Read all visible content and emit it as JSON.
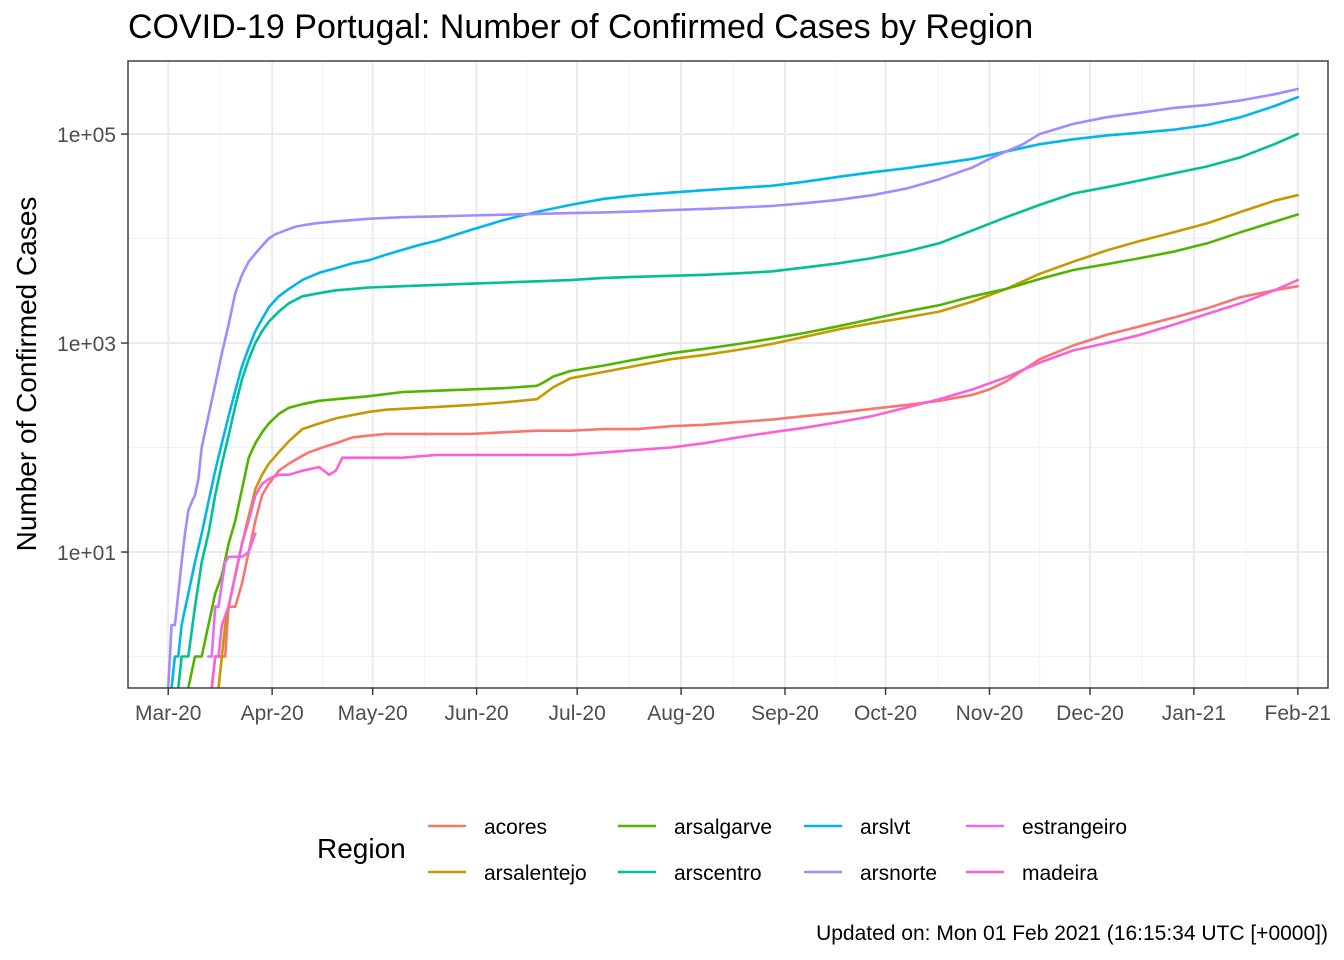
{
  "chart_data": {
    "type": "line",
    "title": "COVID-19 Portugal: Number of Confirmed Cases by Region",
    "xlabel": "",
    "ylabel": "Number of Confirmed Cases",
    "y_scale": "log10",
    "ylim": [
      0.5,
      500000
    ],
    "xlim": [
      -12,
      346
    ],
    "x_unit": "days since 2020-03-01",
    "x_ticks": [
      {
        "label": "Mar-20",
        "day": 0
      },
      {
        "label": "Apr-20",
        "day": 31
      },
      {
        "label": "May-20",
        "day": 61
      },
      {
        "label": "Jun-20",
        "day": 92
      },
      {
        "label": "Jul-20",
        "day": 122
      },
      {
        "label": "Aug-20",
        "day": 153
      },
      {
        "label": "Sep-20",
        "day": 184
      },
      {
        "label": "Oct-20",
        "day": 214
      },
      {
        "label": "Nov-20",
        "day": 245
      },
      {
        "label": "Dec-20",
        "day": 275
      },
      {
        "label": "Jan-21",
        "day": 306
      },
      {
        "label": "Feb-21",
        "day": 337
      }
    ],
    "y_ticks": [
      {
        "label": "1e+01",
        "value": 10
      },
      {
        "label": "1e+03",
        "value": 1000
      },
      {
        "label": "1e+05",
        "value": 100000
      }
    ],
    "legend": {
      "title": "Region",
      "position": "bottom"
    },
    "series": [
      {
        "name": "acores",
        "color": "#F8766D",
        "x": [
          13,
          14,
          15,
          16,
          17,
          18,
          20,
          22,
          24,
          26,
          28,
          30,
          33,
          36,
          39,
          42,
          46,
          50,
          55,
          60,
          65,
          70,
          75,
          80,
          90,
          100,
          110,
          120,
          130,
          140,
          150,
          160,
          170,
          180,
          190,
          200,
          210,
          220,
          230,
          240,
          245,
          250,
          255,
          260,
          270,
          280,
          290,
          300,
          310,
          320,
          330,
          337
        ],
        "y": [
          0.5,
          1,
          1,
          1,
          1,
          3,
          3,
          5,
          10,
          20,
          35,
          45,
          60,
          70,
          80,
          90,
          100,
          110,
          125,
          130,
          135,
          135,
          135,
          135,
          135,
          140,
          145,
          145,
          150,
          150,
          160,
          165,
          175,
          185,
          200,
          215,
          235,
          255,
          280,
          320,
          360,
          430,
          550,
          700,
          950,
          1200,
          1450,
          1750,
          2150,
          2750,
          3200,
          3500
        ]
      },
      {
        "name": "arsalentejo",
        "color": "#C49A00",
        "x": [
          15,
          16,
          17,
          18,
          20,
          22,
          24,
          26,
          28,
          30,
          33,
          36,
          40,
          45,
          50,
          55,
          60,
          65,
          70,
          80,
          90,
          100,
          110,
          115,
          120,
          130,
          140,
          150,
          160,
          170,
          180,
          190,
          200,
          210,
          220,
          230,
          240,
          250,
          260,
          270,
          280,
          290,
          300,
          310,
          320,
          330,
          337
        ],
        "y": [
          0.5,
          1,
          2,
          3,
          6,
          12,
          22,
          40,
          55,
          70,
          90,
          115,
          150,
          170,
          190,
          205,
          220,
          230,
          235,
          245,
          255,
          270,
          290,
          380,
          460,
          530,
          610,
          700,
          770,
          860,
          980,
          1150,
          1350,
          1550,
          1750,
          2000,
          2500,
          3300,
          4600,
          6000,
          7700,
          9500,
          11500,
          14000,
          18000,
          23000,
          26000
        ]
      },
      {
        "name": "arsalgarve",
        "color": "#53B400",
        "x": [
          6,
          8,
          10,
          12,
          14,
          16,
          18,
          20,
          22,
          24,
          26,
          28,
          30,
          33,
          36,
          40,
          45,
          50,
          55,
          60,
          65,
          70,
          80,
          90,
          100,
          110,
          112,
          115,
          120,
          130,
          140,
          150,
          160,
          170,
          180,
          190,
          200,
          210,
          220,
          230,
          240,
          250,
          260,
          270,
          280,
          290,
          300,
          310,
          320,
          330,
          337
        ],
        "y": [
          0.5,
          1,
          1,
          2,
          4,
          6,
          12,
          20,
          40,
          80,
          110,
          140,
          170,
          210,
          240,
          260,
          280,
          290,
          300,
          310,
          325,
          340,
          350,
          360,
          370,
          390,
          420,
          480,
          540,
          610,
          700,
          800,
          880,
          980,
          1100,
          1250,
          1450,
          1700,
          2000,
          2300,
          2800,
          3300,
          4100,
          5000,
          5700,
          6500,
          7500,
          9000,
          11500,
          14500,
          17000
        ]
      },
      {
        "name": "arscentro",
        "color": "#00C094",
        "x": [
          3,
          4,
          5,
          6,
          8,
          10,
          12,
          14,
          16,
          18,
          20,
          22,
          24,
          26,
          28,
          30,
          33,
          36,
          40,
          45,
          50,
          55,
          60,
          70,
          80,
          90,
          100,
          110,
          120,
          130,
          140,
          150,
          160,
          170,
          180,
          190,
          200,
          210,
          220,
          230,
          240,
          250,
          260,
          270,
          280,
          290,
          300,
          310,
          320,
          330,
          337
        ],
        "y": [
          0.5,
          1,
          1,
          1,
          3,
          8,
          15,
          35,
          70,
          130,
          250,
          450,
          700,
          1000,
          1300,
          1600,
          2000,
          2400,
          2800,
          3000,
          3200,
          3300,
          3400,
          3500,
          3600,
          3700,
          3800,
          3900,
          4000,
          4200,
          4300,
          4400,
          4500,
          4650,
          4850,
          5300,
          5800,
          6500,
          7500,
          9000,
          12000,
          16000,
          21000,
          27000,
          31000,
          36000,
          42000,
          49000,
          60000,
          80000,
          100000
        ]
      },
      {
        "name": "arslvt",
        "color": "#00B6EB",
        "x": [
          1,
          2,
          3,
          4,
          6,
          8,
          10,
          12,
          14,
          16,
          18,
          20,
          22,
          24,
          26,
          28,
          30,
          33,
          36,
          40,
          45,
          50,
          55,
          60,
          65,
          70,
          75,
          80,
          90,
          100,
          110,
          120,
          130,
          140,
          150,
          160,
          170,
          180,
          190,
          200,
          210,
          220,
          230,
          240,
          250,
          260,
          270,
          280,
          290,
          300,
          310,
          320,
          330,
          337
        ],
        "y": [
          0.5,
          1,
          1,
          2,
          4,
          8,
          15,
          30,
          60,
          110,
          200,
          350,
          600,
          900,
          1300,
          1700,
          2200,
          2800,
          3300,
          4000,
          4700,
          5200,
          5800,
          6200,
          7000,
          7800,
          8700,
          9500,
          12000,
          15000,
          18000,
          21000,
          24000,
          26000,
          27500,
          29000,
          30500,
          32000,
          35000,
          39000,
          43000,
          47000,
          52000,
          58000,
          68000,
          80000,
          89000,
          97000,
          103000,
          110000,
          122000,
          145000,
          185000,
          225000
        ]
      },
      {
        "name": "arsnorte",
        "color": "#A58AFF",
        "x": [
          0,
          1,
          2,
          3,
          4,
          5,
          6,
          7,
          8,
          9,
          10,
          12,
          14,
          16,
          18,
          20,
          22,
          24,
          26,
          28,
          30,
          32,
          35,
          38,
          41,
          44,
          47,
          50,
          55,
          60,
          70,
          80,
          90,
          100,
          110,
          120,
          130,
          140,
          150,
          160,
          170,
          180,
          190,
          200,
          210,
          220,
          230,
          240,
          245,
          250,
          255,
          260,
          270,
          280,
          290,
          300,
          310,
          320,
          330,
          337
        ],
        "y": [
          0.5,
          2,
          2,
          4,
          8,
          15,
          25,
          30,
          35,
          50,
          100,
          200,
          400,
          800,
          1500,
          3000,
          4500,
          6000,
          7200,
          8500,
          10000,
          11000,
          12000,
          13000,
          13500,
          14000,
          14300,
          14600,
          15000,
          15500,
          16000,
          16300,
          16600,
          16900,
          17200,
          17500,
          17800,
          18200,
          18700,
          19200,
          19800,
          20500,
          21800,
          23500,
          26000,
          30000,
          37000,
          48000,
          58000,
          68000,
          80000,
          100000,
          125000,
          145000,
          160000,
          178000,
          190000,
          210000,
          240000,
          270000
        ]
      },
      {
        "name": "estrangeiro",
        "color": "#E76BF3",
        "x": [
          12,
          13,
          14,
          15,
          16,
          17,
          18,
          20,
          22,
          24,
          26
        ],
        "y": [
          1,
          1,
          3,
          3,
          5,
          8,
          9,
          9,
          9,
          10,
          15
        ]
      },
      {
        "name": "madeira",
        "color": "#FB61D7",
        "x": [
          13,
          14,
          15,
          16,
          18,
          20,
          22,
          24,
          26,
          28,
          30,
          33,
          36,
          40,
          45,
          48,
          50,
          52,
          55,
          60,
          70,
          80,
          100,
          120,
          140,
          150,
          160,
          170,
          180,
          190,
          200,
          210,
          220,
          230,
          240,
          250,
          260,
          270,
          280,
          290,
          300,
          310,
          320,
          330,
          337
        ],
        "y": [
          0.5,
          1,
          1,
          2,
          3,
          6,
          12,
          20,
          35,
          45,
          50,
          55,
          55,
          60,
          65,
          55,
          60,
          80,
          80,
          80,
          80,
          85,
          85,
          85,
          95,
          100,
          110,
          125,
          140,
          155,
          175,
          200,
          240,
          290,
          360,
          470,
          650,
          850,
          1000,
          1200,
          1500,
          1900,
          2400,
          3200,
          4000
        ]
      }
    ]
  },
  "caption": "Updated on: Mon 01 Feb 2021 (16:15:34 UTC [+0000])"
}
